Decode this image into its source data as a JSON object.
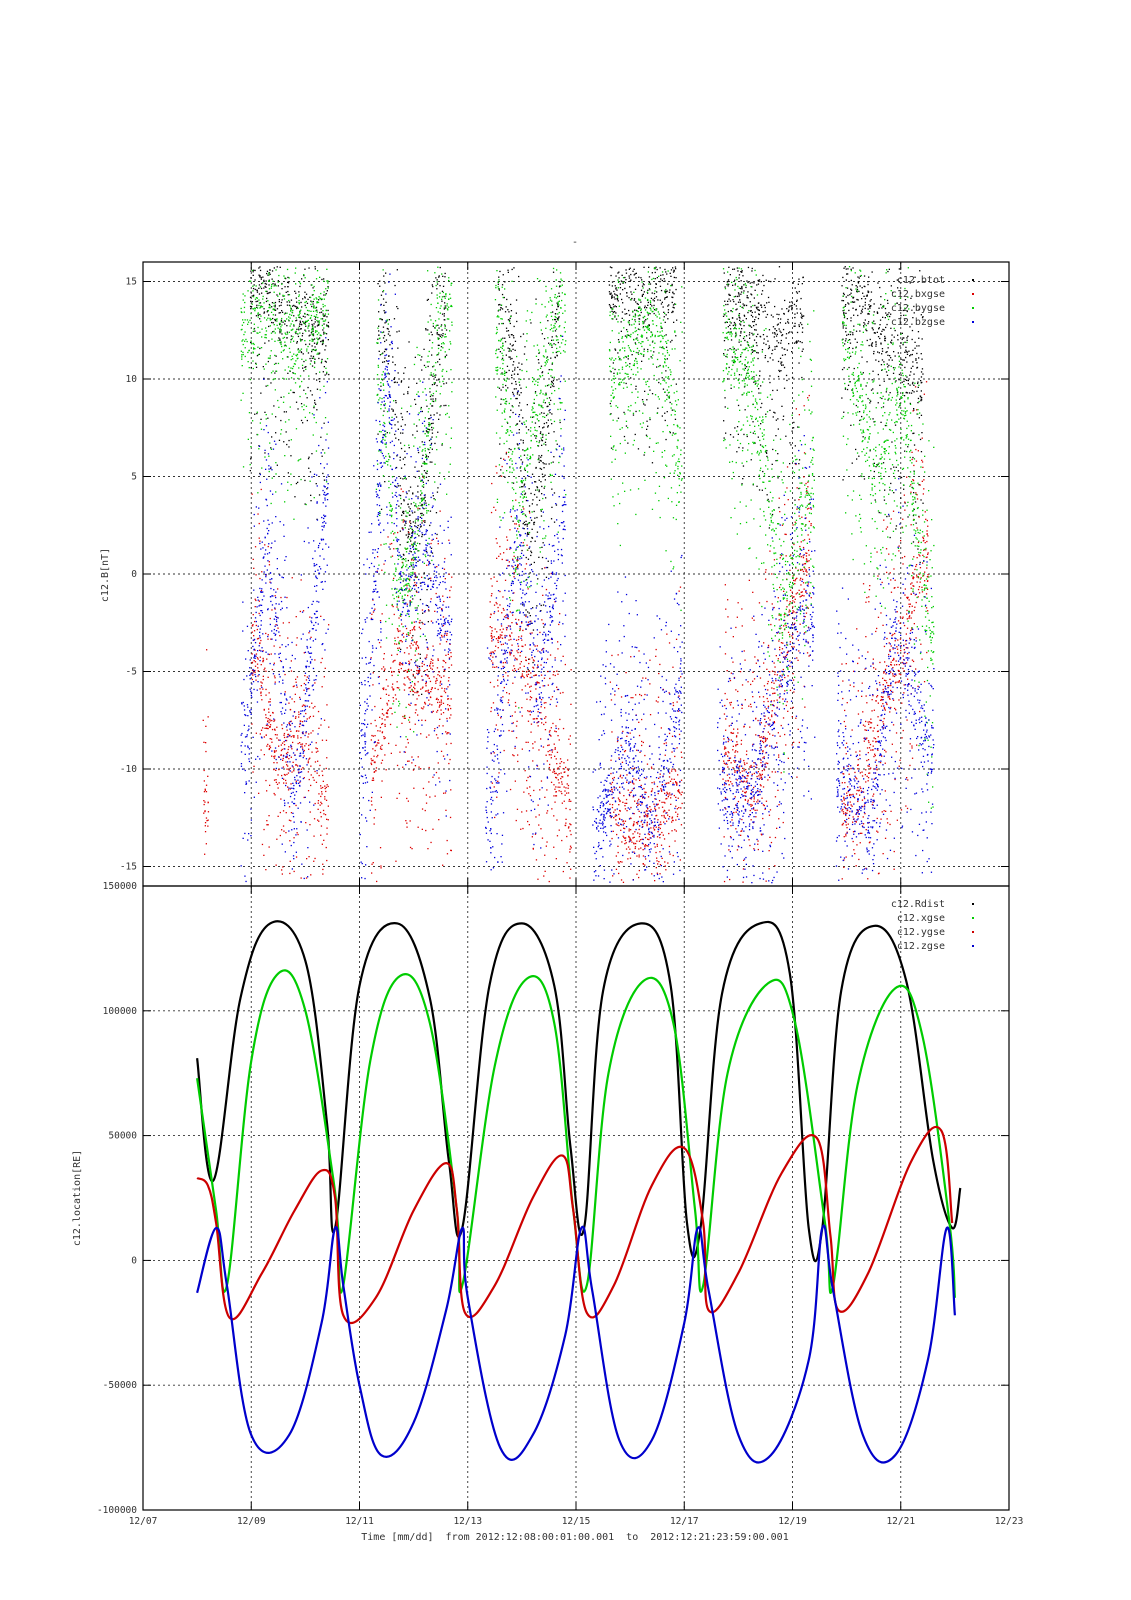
{
  "figure": {
    "title": "-",
    "xlabel": "Time [mm/dd]  from 2012:12:08:00:01:00.001  to  2012:12:21:23:59:00.001",
    "x_tick_labels": [
      "12/07",
      "12/09",
      "12/11",
      "12/13",
      "12/15",
      "12/17",
      "12/19",
      "12/21",
      "12/23"
    ]
  },
  "chart_data": [
    {
      "type": "scatter",
      "ylabel": "c12.B[nT]",
      "xlim": [
        7,
        23
      ],
      "ylim": [
        -16,
        16
      ],
      "y_ticks": [
        -15,
        -10,
        -5,
        0,
        5,
        10,
        15
      ],
      "grid": true,
      "legend_placement": "top-right",
      "series": [
        {
          "name": "c12.btot",
          "color": "#000000",
          "segments": [
            {
              "x0": 8.97,
              "x1": 10.42,
              "points": [
                [
                  9.0,
                  15
                ],
                [
                  9.4,
                  14
                ],
                [
                  9.9,
                  13
                ],
                [
                  10.4,
                  12
                ]
              ]
            },
            {
              "x0": 11.32,
              "x1": 12.6,
              "points": [
                [
                  11.4,
                  13
                ],
                [
                  11.6,
                  11
                ],
                [
                  11.8,
                  4
                ],
                [
                  12.0,
                  2
                ],
                [
                  12.2,
                  4
                ],
                [
                  12.5,
                  14
                ]
              ]
            },
            {
              "x0": 13.55,
              "x1": 14.7,
              "points": [
                [
                  13.6,
                  14
                ],
                [
                  13.9,
                  10
                ],
                [
                  14.1,
                  2
                ],
                [
                  14.4,
                  7
                ],
                [
                  14.7,
                  14
                ]
              ]
            },
            {
              "x0": 15.6,
              "x1": 16.85,
              "points": [
                [
                  15.6,
                  15
                ],
                [
                  16.2,
                  14
                ],
                [
                  16.8,
                  15
                ]
              ]
            },
            {
              "x0": 17.7,
              "x1": 19.2,
              "points": [
                [
                  17.8,
                  14
                ],
                [
                  18.3,
                  13
                ],
                [
                  18.8,
                  12
                ],
                [
                  19.2,
                  14
                ]
              ]
            },
            {
              "x0": 19.9,
              "x1": 21.4,
              "points": [
                [
                  20.0,
                  14
                ],
                [
                  20.5,
                  13
                ],
                [
                  21.0,
                  11
                ],
                [
                  21.4,
                  10
                ]
              ]
            }
          ]
        },
        {
          "name": "c12.bxgse",
          "color": "#dd0000",
          "segments": [
            {
              "x0": 8.1,
              "x1": 8.2,
              "points": [
                [
                  8.1,
                  -11
                ],
                [
                  8.2,
                  -13
                ]
              ]
            },
            {
              "x0": 9.0,
              "x1": 10.42,
              "points": [
                [
                  9.1,
                  -4
                ],
                [
                  9.5,
                  -10
                ],
                [
                  9.9,
                  -8
                ],
                [
                  10.4,
                  -12
                ]
              ]
            },
            {
              "x0": 11.2,
              "x1": 12.7,
              "points": [
                [
                  11.3,
                  -9
                ],
                [
                  11.7,
                  -4
                ],
                [
                  12.1,
                  -5
                ],
                [
                  12.6,
                  -6
                ]
              ]
            },
            {
              "x0": 13.4,
              "x1": 14.9,
              "points": [
                [
                  13.6,
                  -3
                ],
                [
                  14.0,
                  -4
                ],
                [
                  14.5,
                  -9
                ],
                [
                  14.9,
                  -12
                ]
              ]
            },
            {
              "x0": 15.6,
              "x1": 16.95,
              "points": [
                [
                  15.7,
                  -12
                ],
                [
                  16.2,
                  -13
                ],
                [
                  16.6,
                  -12
                ],
                [
                  16.9,
                  -11
                ]
              ]
            },
            {
              "x0": 17.7,
              "x1": 19.35,
              "points": [
                [
                  17.9,
                  -9
                ],
                [
                  18.3,
                  -11
                ],
                [
                  18.8,
                  -4
                ],
                [
                  19.3,
                  2
                ]
              ]
            },
            {
              "x0": 19.9,
              "x1": 21.5,
              "points": [
                [
                  20.1,
                  -12
                ],
                [
                  20.6,
                  -7
                ],
                [
                  21.0,
                  -4
                ],
                [
                  21.4,
                  1
                ]
              ]
            }
          ]
        },
        {
          "name": "c12.bygse",
          "color": "#00cc00",
          "segments": [
            {
              "x0": 8.8,
              "x1": 10.42,
              "points": [
                [
                  8.9,
                  12
                ],
                [
                  9.3,
                  14
                ],
                [
                  9.8,
                  12
                ],
                [
                  10.4,
                  14
                ]
              ]
            },
            {
              "x0": 11.3,
              "x1": 12.7,
              "points": [
                [
                  11.4,
                  10
                ],
                [
                  11.7,
                  -1
                ],
                [
                  12.0,
                  1
                ],
                [
                  12.4,
                  12
                ],
                [
                  12.7,
                  14
                ]
              ]
            },
            {
              "x0": 13.5,
              "x1": 14.8,
              "points": [
                [
                  13.6,
                  12
                ],
                [
                  13.9,
                  2
                ],
                [
                  14.2,
                  8
                ],
                [
                  14.7,
                  13
                ]
              ]
            },
            {
              "x0": 15.6,
              "x1": 16.95,
              "points": [
                [
                  15.7,
                  10
                ],
                [
                  16.2,
                  13
                ],
                [
                  16.6,
                  12
                ],
                [
                  16.9,
                  6
                ]
              ]
            },
            {
              "x0": 17.7,
              "x1": 19.4,
              "points": [
                [
                  17.8,
                  12
                ],
                [
                  18.3,
                  10
                ],
                [
                  18.8,
                  -2
                ],
                [
                  19.3,
                  5
                ]
              ]
            },
            {
              "x0": 19.9,
              "x1": 21.6,
              "points": [
                [
                  20.0,
                  12
                ],
                [
                  20.5,
                  5
                ],
                [
                  21.0,
                  10
                ],
                [
                  21.5,
                  -3
                ]
              ]
            }
          ]
        },
        {
          "name": "c12.bzgse",
          "color": "#0000dd",
          "segments": [
            {
              "x0": 8.8,
              "x1": 10.42,
              "points": [
                [
                  8.9,
                  -8
                ],
                [
                  9.3,
                  2
                ],
                [
                  9.8,
                  -12
                ],
                [
                  10.4,
                  5
                ]
              ]
            },
            {
              "x0": 11.0,
              "x1": 12.7,
              "points": [
                [
                  11.1,
                  -9
                ],
                [
                  11.5,
                  11
                ],
                [
                  11.8,
                  -2
                ],
                [
                  12.1,
                  2
                ],
                [
                  12.6,
                  -3
                ]
              ]
            },
            {
              "x0": 13.3,
              "x1": 14.8,
              "points": [
                [
                  13.4,
                  -12
                ],
                [
                  13.9,
                  2
                ],
                [
                  14.3,
                  -6
                ],
                [
                  14.8,
                  4
                ]
              ]
            },
            {
              "x0": 15.3,
              "x1": 16.95,
              "points": [
                [
                  15.4,
                  -13
                ],
                [
                  15.9,
                  -9
                ],
                [
                  16.4,
                  -13
                ],
                [
                  16.9,
                  -6
                ]
              ]
            },
            {
              "x0": 17.6,
              "x1": 19.4,
              "points": [
                [
                  17.7,
                  -11
                ],
                [
                  18.2,
                  -12
                ],
                [
                  18.7,
                  -6
                ],
                [
                  19.2,
                  -2
                ]
              ]
            },
            {
              "x0": 19.8,
              "x1": 21.6,
              "points": [
                [
                  19.9,
                  -10
                ],
                [
                  20.4,
                  -13
                ],
                [
                  20.9,
                  -3
                ],
                [
                  21.5,
                  -9
                ]
              ]
            }
          ]
        }
      ]
    },
    {
      "type": "line",
      "ylabel": "c12.location[RE]",
      "xlim": [
        7,
        23
      ],
      "ylim": [
        -100000,
        150000
      ],
      "y_tick_labels": [
        "150000",
        "100000",
        "50000",
        "0",
        "-50000",
        "-100000"
      ],
      "grid": true,
      "legend_placement": "top-right",
      "series": [
        {
          "name": "c12.Rdist",
          "color": "#000000",
          "x": [
            8.0,
            8.3,
            8.8,
            9.35,
            10.0,
            10.4,
            10.55,
            11.0,
            11.7,
            12.3,
            12.65,
            12.9,
            13.4,
            14.0,
            14.6,
            14.9,
            15.15,
            15.5,
            16.2,
            16.75,
            17.05,
            17.3,
            17.7,
            18.4,
            18.95,
            19.3,
            19.55,
            19.9,
            20.5,
            21.1,
            21.6,
            21.95,
            22.1
          ],
          "y": [
            81000,
            32000,
            105000,
            135000,
            120000,
            55000,
            13000,
            110000,
            135000,
            105000,
            40000,
            13000,
            110000,
            135000,
            110000,
            45000,
            13000,
            108000,
            135000,
            110000,
            15000,
            13000,
            107000,
            135000,
            115000,
            13000,
            13000,
            108000,
            134000,
            112000,
            40000,
            13000,
            29000
          ]
        },
        {
          "name": "c12.xgse",
          "color": "#00cc00",
          "x": [
            8.0,
            8.35,
            8.55,
            9.0,
            9.5,
            10.0,
            10.5,
            10.6,
            10.7,
            11.2,
            11.75,
            12.3,
            12.8,
            12.9,
            13.5,
            14.1,
            14.6,
            14.95,
            15.2,
            15.6,
            16.25,
            16.8,
            17.2,
            17.35,
            17.8,
            18.55,
            19.05,
            19.6,
            19.75,
            20.2,
            20.9,
            21.4,
            21.9,
            22.0
          ],
          "y": [
            73000,
            20000,
            -10000,
            80000,
            115000,
            100000,
            35000,
            14000,
            -10000,
            80000,
            114000,
            95000,
            20000,
            -10000,
            78000,
            113000,
            95000,
            20000,
            -10000,
            75000,
            112000,
            95000,
            20000,
            -10000,
            75000,
            111000,
            95000,
            15000,
            -10000,
            70000,
            109000,
            90000,
            15000,
            -15000
          ]
        },
        {
          "name": "c12.ygse",
          "color": "#cc0000",
          "x": [
            8.0,
            8.2,
            8.35,
            8.6,
            9.2,
            9.8,
            10.3,
            10.55,
            10.7,
            11.3,
            12.0,
            12.6,
            12.8,
            12.95,
            13.5,
            14.2,
            14.75,
            14.95,
            15.2,
            15.7,
            16.4,
            17.0,
            17.35,
            17.45,
            18.0,
            18.8,
            19.45,
            19.7,
            19.85,
            20.4,
            21.2,
            21.75,
            21.95
          ],
          "y": [
            33000,
            30000,
            15000,
            -23000,
            -5000,
            20000,
            36000,
            25000,
            -22000,
            -15000,
            20000,
            39000,
            20000,
            -21000,
            -10000,
            25000,
            42000,
            20000,
            -21000,
            -10000,
            30000,
            45000,
            15000,
            -20000,
            -5000,
            35000,
            49000,
            10000,
            -20000,
            -5000,
            40000,
            52000,
            15000
          ]
        },
        {
          "name": "c12.zgse",
          "color": "#0000cc",
          "x": [
            8.0,
            8.35,
            8.55,
            9.0,
            9.7,
            10.3,
            10.55,
            10.7,
            11.0,
            11.4,
            12.0,
            12.6,
            12.9,
            13.0,
            13.6,
            14.2,
            14.8,
            15.1,
            15.3,
            15.8,
            16.4,
            17.0,
            17.25,
            17.45,
            18.0,
            18.6,
            19.3,
            19.55,
            19.75,
            20.3,
            20.9,
            21.5,
            21.85,
            22.0
          ],
          "y": [
            -13000,
            13000,
            -10000,
            -70000,
            -70000,
            -25000,
            13000,
            -10000,
            -50000,
            -78000,
            -65000,
            -20000,
            13000,
            -15000,
            -75000,
            -70000,
            -30000,
            13000,
            -12000,
            -72000,
            -72000,
            -25000,
            13000,
            -12000,
            -70000,
            -78000,
            -40000,
            13000,
            -12000,
            -70000,
            -78000,
            -40000,
            13000,
            -22000
          ]
        }
      ]
    }
  ]
}
